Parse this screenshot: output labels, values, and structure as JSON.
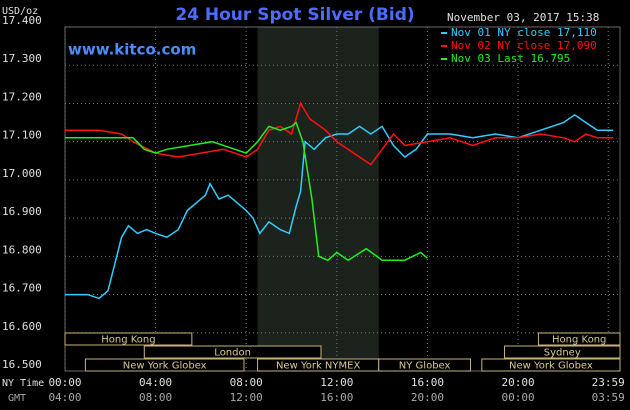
{
  "chart_data": {
    "type": "line",
    "title": "24 Hour Spot Silver (Bid)",
    "y_unit": "USD/oz",
    "timestamp": "November 03, 2017 15:38",
    "source": "www.kitco.com",
    "x_axis_labels": [
      "NY Time",
      "GMT"
    ],
    "xlim": [
      0,
      24.5
    ],
    "ylim": [
      16.5,
      17.4
    ],
    "xticks": [
      {
        "value": 0,
        "label": "00:00"
      },
      {
        "value": 4,
        "label": "04:00"
      },
      {
        "value": 8,
        "label": "08:00"
      },
      {
        "value": 12,
        "label": "12:00"
      },
      {
        "value": 16,
        "label": "16:00"
      },
      {
        "value": 20,
        "label": "20:00"
      },
      {
        "value": 23.98,
        "label": "23:59"
      }
    ],
    "gmt_labels": [
      "04:00",
      "08:00",
      "12:00",
      "16:00",
      "20:00",
      "00:00",
      "03:59"
    ],
    "yticks": [
      {
        "value": 17.4,
        "label": "17.400"
      },
      {
        "value": 17.3,
        "label": "17.300"
      },
      {
        "value": 17.2,
        "label": "17.200"
      },
      {
        "value": 17.1,
        "label": "17.100"
      },
      {
        "value": 17.0,
        "label": "17.000"
      },
      {
        "value": 16.9,
        "label": "16.900"
      },
      {
        "value": 16.8,
        "label": "16.800"
      },
      {
        "value": 16.7,
        "label": "16.700"
      },
      {
        "value": 16.6,
        "label": "16.600"
      },
      {
        "value": 16.5,
        "label": "16.500"
      }
    ],
    "grid": true,
    "highlight": [
      8.5,
      13.85
    ],
    "sessions": [
      {
        "label": "Hong Kong",
        "start": 0,
        "end": 5.6
      },
      {
        "label": "London",
        "start": 3.5,
        "end": 11.3
      },
      {
        "label": "New York Globex",
        "start": 0.9,
        "end": 7.9
      },
      {
        "label": "New York NYMEX",
        "start": 8.5,
        "end": 13.85
      },
      {
        "label": "NY Globex",
        "start": 13.85,
        "end": 17.9
      },
      {
        "label": "Hong Kong",
        "start": 20.9,
        "end": 24.5
      },
      {
        "label": "Sydney",
        "start": 19.4,
        "end": 24.5
      },
      {
        "label": "New York Globex",
        "start": 18.4,
        "end": 24.5
      }
    ],
    "series": [
      {
        "name": "Nov 01 NY close 17,110",
        "color": "#33ccff",
        "x": [
          0,
          1,
          1.5,
          1.9,
          2.2,
          2.5,
          2.8,
          3.2,
          3.6,
          4,
          4.5,
          5,
          5.4,
          5.8,
          6.2,
          6.4,
          6.8,
          7.2,
          7.6,
          8,
          8.3,
          8.6,
          9,
          9.5,
          9.9,
          10.2,
          10.4,
          10.6,
          11,
          11.5,
          12,
          12.5,
          13,
          13.5,
          14,
          14.5,
          15,
          15.5,
          16,
          17,
          18,
          19,
          20,
          21,
          22,
          22.5,
          23,
          23.5,
          24.2
        ],
        "values": [
          16.7,
          16.7,
          16.69,
          16.71,
          16.78,
          16.85,
          16.88,
          16.86,
          16.87,
          16.86,
          16.85,
          16.87,
          16.92,
          16.94,
          16.96,
          16.99,
          16.95,
          16.96,
          16.94,
          16.92,
          16.9,
          16.86,
          16.89,
          16.87,
          16.86,
          16.93,
          16.97,
          17.1,
          17.08,
          17.11,
          17.12,
          17.12,
          17.14,
          17.12,
          17.14,
          17.09,
          17.06,
          17.08,
          17.12,
          17.12,
          17.11,
          17.12,
          17.11,
          17.13,
          17.15,
          17.17,
          17.15,
          17.13,
          17.13
        ]
      },
      {
        "name": "Nov 02 NY close 17,090",
        "color": "#ff1111",
        "x": [
          0,
          1.5,
          2.5,
          3,
          4,
          5,
          6,
          7,
          8,
          8.5,
          9,
          9.5,
          10,
          10.4,
          10.8,
          11.5,
          12,
          13,
          13.5,
          14,
          14.5,
          15,
          16,
          17,
          18,
          19,
          20,
          21,
          22,
          22.5,
          23,
          23.5,
          24.2
        ],
        "values": [
          17.13,
          17.13,
          17.12,
          17.1,
          17.07,
          17.06,
          17.07,
          17.08,
          17.06,
          17.08,
          17.13,
          17.14,
          17.12,
          17.2,
          17.16,
          17.13,
          17.1,
          17.06,
          17.04,
          17.08,
          17.12,
          17.09,
          17.1,
          17.11,
          17.09,
          17.11,
          17.11,
          17.12,
          17.11,
          17.1,
          17.12,
          17.11,
          17.11
        ]
      },
      {
        "name": "Nov 03 Last 16.795",
        "color": "#22ee22",
        "x": [
          0,
          3,
          3.5,
          4,
          4.5,
          5.5,
          6.5,
          7.5,
          8,
          8.5,
          9,
          9.5,
          10,
          10.2,
          10.5,
          10.9,
          11.2,
          11.6,
          12,
          12.5,
          13.3,
          14,
          15,
          15.7,
          16
        ],
        "values": [
          17.11,
          17.11,
          17.08,
          17.07,
          17.08,
          17.09,
          17.1,
          17.08,
          17.07,
          17.1,
          17.14,
          17.13,
          17.14,
          17.15,
          17.1,
          16.95,
          16.8,
          16.79,
          16.81,
          16.79,
          16.82,
          16.79,
          16.79,
          16.81,
          16.795
        ]
      }
    ]
  }
}
